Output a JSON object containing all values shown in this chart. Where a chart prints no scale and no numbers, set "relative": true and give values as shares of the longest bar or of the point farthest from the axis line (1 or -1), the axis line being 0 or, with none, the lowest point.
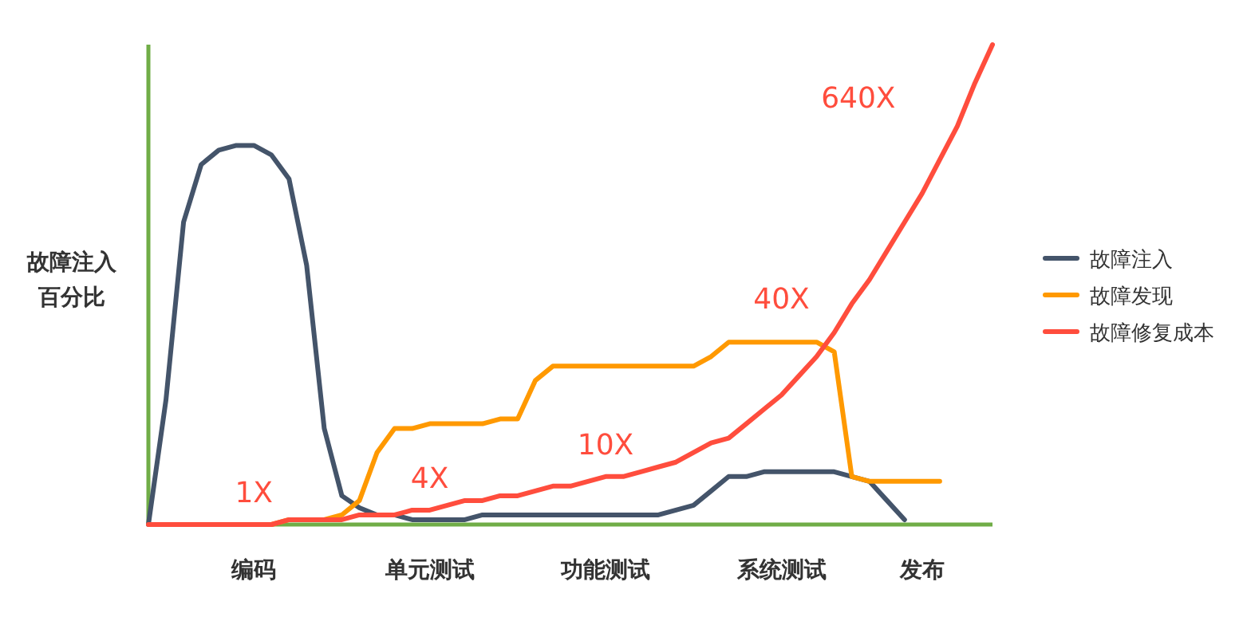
{
  "chart_data": {
    "type": "line",
    "relative": true,
    "ylabel": "故障注入百分比",
    "categories": [
      null,
      null,
      null,
      null,
      null,
      null,
      "编码",
      null,
      null,
      null,
      null,
      null,
      null,
      null,
      null,
      null,
      "单元测试",
      null,
      null,
      null,
      null,
      null,
      null,
      null,
      null,
      null,
      "功能测试",
      null,
      null,
      null,
      null,
      null,
      null,
      null,
      null,
      null,
      "系统测试",
      null,
      null,
      null,
      null,
      null,
      null,
      null,
      "发布",
      null,
      null,
      null,
      null
    ],
    "legend": "right",
    "grid": false,
    "series": [
      {
        "name": "故障注入",
        "color": "#44546a",
        "values": [
          0,
          0.26,
          0.63,
          0.75,
          0.78,
          0.79,
          0.79,
          0.77,
          0.72,
          0.54,
          0.2,
          0.06,
          0.035,
          0.02,
          0.02,
          0.01,
          0.01,
          0.01,
          0.01,
          0.02,
          0.02,
          0.02,
          0.02,
          0.02,
          0.02,
          0.02,
          0.02,
          0.02,
          0.02,
          0.02,
          0.03,
          0.04,
          0.07,
          0.1,
          0.1,
          0.11,
          0.11,
          0.11,
          0.11,
          0.11,
          0.1,
          0.09,
          0.05,
          0.01,
          null,
          null,
          null,
          null,
          null
        ]
      },
      {
        "name": "故障发现",
        "color": "#ff9900",
        "values": [
          null,
          null,
          null,
          null,
          null,
          null,
          0,
          0,
          0.01,
          0.01,
          0.01,
          0.02,
          0.05,
          0.15,
          0.2,
          0.2,
          0.21,
          0.21,
          0.21,
          0.21,
          0.22,
          0.22,
          0.3,
          0.33,
          0.33,
          0.33,
          0.33,
          0.33,
          0.33,
          0.33,
          0.33,
          0.33,
          0.35,
          0.38,
          0.38,
          0.38,
          0.38,
          0.38,
          0.38,
          0.36,
          0.1,
          0.09,
          0.09,
          0.09,
          0.09,
          0.09,
          null,
          null,
          null
        ]
      },
      {
        "name": "故障修复成本",
        "color": "#ff4d3d",
        "values": [
          0,
          0,
          0,
          0,
          0,
          0,
          0,
          0,
          0.01,
          0.01,
          0.01,
          0.01,
          0.02,
          0.02,
          0.02,
          0.03,
          0.03,
          0.04,
          0.05,
          0.05,
          0.06,
          0.06,
          0.07,
          0.08,
          0.08,
          0.09,
          0.1,
          0.1,
          0.11,
          0.12,
          0.13,
          0.15,
          0.17,
          0.18,
          0.21,
          0.24,
          0.27,
          0.31,
          0.35,
          0.4,
          0.46,
          0.51,
          0.57,
          0.63,
          0.69,
          0.76,
          0.83,
          0.92,
          1.0
        ]
      }
    ],
    "annotations": [
      "1X",
      "4X",
      "10X",
      "40X",
      "640X"
    ]
  }
}
